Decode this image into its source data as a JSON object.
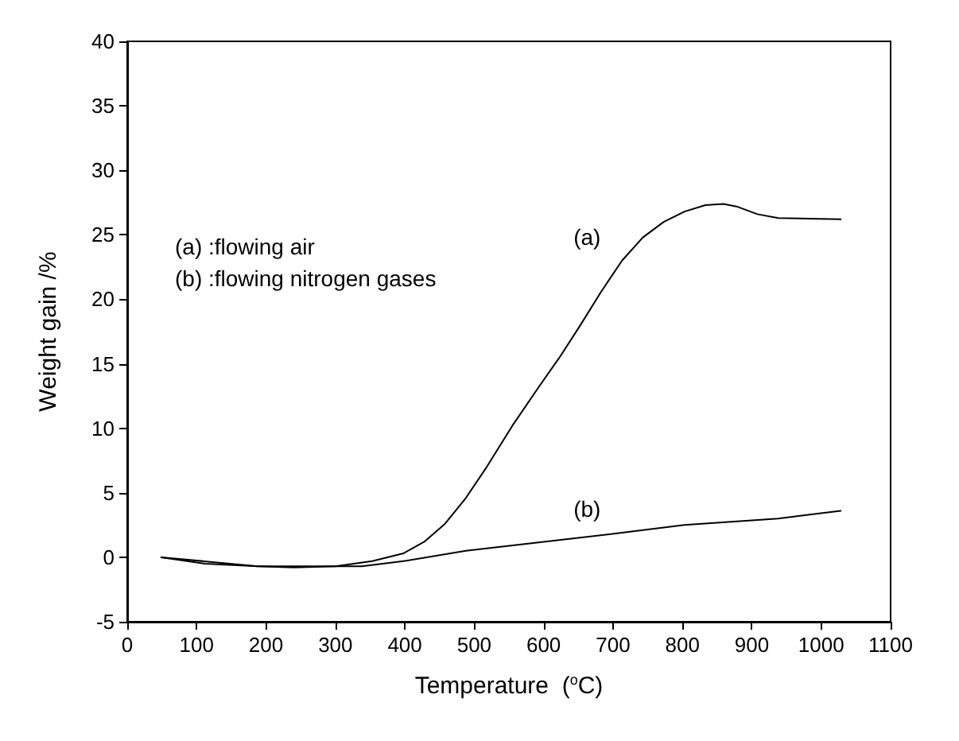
{
  "chart_data": {
    "type": "line",
    "xlabel": "Temperature  ($^{o}$C)",
    "ylabel": "Weight gain /%",
    "xlim": [
      0,
      1100
    ],
    "xticks": [
      0,
      100,
      200,
      300,
      400,
      500,
      600,
      700,
      800,
      900,
      1000,
      1100
    ],
    "ylim": [
      -5,
      40
    ],
    "yticks": [
      -5,
      0,
      5,
      10,
      15,
      20,
      25,
      30,
      35,
      40
    ],
    "grid": false,
    "legend": false,
    "marker": "none",
    "line_style": "solid",
    "series": [
      {
        "name": "(a)",
        "color": "#000000",
        "x": [
          49,
          112,
          188,
          240,
          300,
          353,
          398,
          428,
          458,
          488,
          518,
          555,
          593,
          623,
          653,
          683,
          713,
          743,
          773,
          803,
          833,
          859,
          878,
          908,
          938,
          1028
        ],
        "values": [
          0,
          -0.5,
          -0.7,
          -0.8,
          -0.7,
          -0.3,
          0.3,
          1.2,
          2.6,
          4.6,
          7.0,
          10.2,
          13.2,
          15.5,
          18.0,
          20.6,
          23.0,
          24.8,
          26.0,
          26.8,
          27.3,
          27.4,
          27.2,
          26.6,
          26.3,
          26.2
        ]
      },
      {
        "name": "(b)",
        "color": "#000000",
        "x": [
          49,
          188,
          338,
          398,
          488,
          600,
          713,
          803,
          938,
          1028
        ],
        "values": [
          0,
          -0.7,
          -0.7,
          -0.3,
          0.5,
          1.2,
          1.9,
          2.5,
          3.0,
          3.6
        ]
      }
    ],
    "annotations": [
      "(a) :flowing air",
      "(b) :flowing nitrogen gases"
    ]
  }
}
